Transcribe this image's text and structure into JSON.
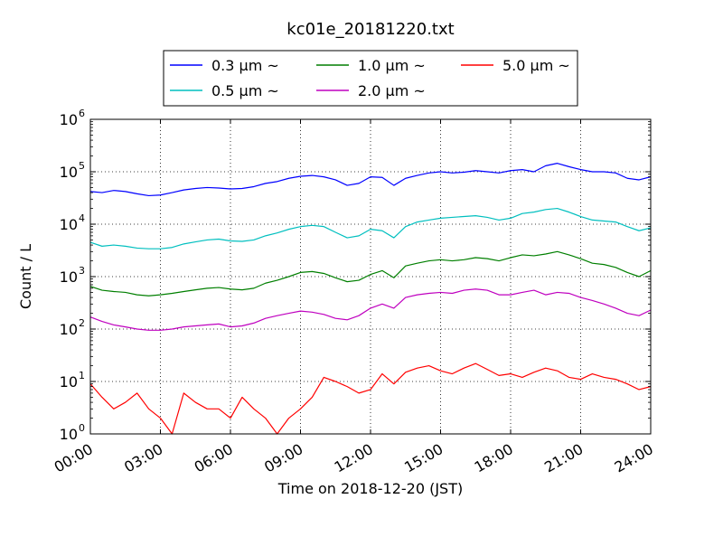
{
  "chart_data": {
    "type": "line",
    "title": "kc01e_20181220.txt",
    "xlabel": "Time on 2018-12-20 (JST)",
    "ylabel": "Count / L",
    "yscale": "log",
    "xlim": [
      "00:00",
      "24:00"
    ],
    "ylim": [
      1,
      1000000
    ],
    "grid": true,
    "legend_position": "top-center",
    "x_ticks": [
      "00:00",
      "03:00",
      "06:00",
      "09:00",
      "12:00",
      "15:00",
      "18:00",
      "21:00",
      "24:00"
    ],
    "y_ticks": [
      {
        "value": 1,
        "base": "10",
        "exp": "0"
      },
      {
        "value": 10,
        "base": "10",
        "exp": "1"
      },
      {
        "value": 100,
        "base": "10",
        "exp": "2"
      },
      {
        "value": 1000,
        "base": "10",
        "exp": "3"
      },
      {
        "value": 10000,
        "base": "10",
        "exp": "4"
      },
      {
        "value": 100000,
        "base": "10",
        "exp": "5"
      },
      {
        "value": 1000000,
        "base": "10",
        "exp": "6"
      }
    ],
    "x": [
      "00:00",
      "00:30",
      "01:00",
      "01:30",
      "02:00",
      "02:30",
      "03:00",
      "03:30",
      "04:00",
      "04:30",
      "05:00",
      "05:30",
      "06:00",
      "06:30",
      "07:00",
      "07:30",
      "08:00",
      "08:30",
      "09:00",
      "09:30",
      "10:00",
      "10:30",
      "11:00",
      "11:30",
      "12:00",
      "12:30",
      "13:00",
      "13:30",
      "14:00",
      "14:30",
      "15:00",
      "15:30",
      "16:00",
      "16:30",
      "17:00",
      "17:30",
      "18:00",
      "18:30",
      "19:00",
      "19:30",
      "20:00",
      "20:30",
      "21:00",
      "21:30",
      "22:00",
      "22:30",
      "23:00",
      "23:30",
      "24:00"
    ],
    "series": [
      {
        "name": "0.3 µm ~",
        "color": "#0000ff",
        "values": [
          42000,
          40000,
          44000,
          42000,
          38000,
          35000,
          36000,
          40000,
          45000,
          48000,
          50000,
          49000,
          47000,
          48000,
          52000,
          60000,
          65000,
          75000,
          82000,
          85000,
          80000,
          70000,
          55000,
          60000,
          80000,
          78000,
          55000,
          75000,
          85000,
          95000,
          100000,
          95000,
          98000,
          105000,
          100000,
          95000,
          105000,
          110000,
          100000,
          130000,
          145000,
          125000,
          110000,
          100000,
          100000,
          95000,
          75000,
          70000,
          80000
        ]
      },
      {
        "name": "0.5 µm ~",
        "color": "#00bfbf",
        "values": [
          4500,
          3800,
          4000,
          3800,
          3500,
          3400,
          3400,
          3600,
          4200,
          4600,
          5000,
          5200,
          4800,
          4700,
          5000,
          6000,
          6800,
          8000,
          9000,
          9500,
          9000,
          7000,
          5500,
          6000,
          8000,
          7500,
          5500,
          9000,
          11000,
          12000,
          13000,
          13500,
          14000,
          14500,
          13500,
          12000,
          13000,
          16000,
          17000,
          19000,
          20000,
          17000,
          14000,
          12000,
          11500,
          11000,
          9000,
          7500,
          8500
        ]
      },
      {
        "name": "1.0 µm ~",
        "color": "#007f00",
        "values": [
          650,
          550,
          520,
          500,
          450,
          430,
          450,
          480,
          520,
          560,
          600,
          620,
          580,
          560,
          600,
          750,
          850,
          1000,
          1200,
          1250,
          1150,
          950,
          800,
          850,
          1100,
          1300,
          950,
          1600,
          1800,
          2000,
          2100,
          2000,
          2100,
          2300,
          2200,
          2000,
          2300,
          2600,
          2500,
          2700,
          3000,
          2600,
          2200,
          1800,
          1700,
          1500,
          1200,
          1000,
          1300
        ]
      },
      {
        "name": "2.0 µm ~",
        "color": "#bf00bf",
        "values": [
          170,
          140,
          120,
          110,
          100,
          95,
          95,
          100,
          110,
          115,
          120,
          125,
          110,
          115,
          130,
          160,
          180,
          200,
          220,
          210,
          190,
          160,
          150,
          180,
          250,
          300,
          250,
          400,
          450,
          480,
          500,
          480,
          550,
          580,
          550,
          450,
          450,
          500,
          550,
          450,
          500,
          480,
          400,
          350,
          300,
          250,
          200,
          180,
          230
        ]
      },
      {
        "name": "5.0 µm ~",
        "color": "#ff0000",
        "values": [
          9,
          5,
          3,
          4,
          6,
          3,
          2,
          1,
          6,
          4,
          3,
          3,
          2,
          5,
          3,
          2,
          1,
          2,
          3,
          5,
          12,
          10,
          8,
          6,
          7,
          14,
          9,
          15,
          18,
          20,
          16,
          14,
          18,
          22,
          17,
          13,
          14,
          12,
          15,
          18,
          16,
          12,
          11,
          14,
          12,
          11,
          9,
          7,
          8
        ]
      }
    ]
  }
}
